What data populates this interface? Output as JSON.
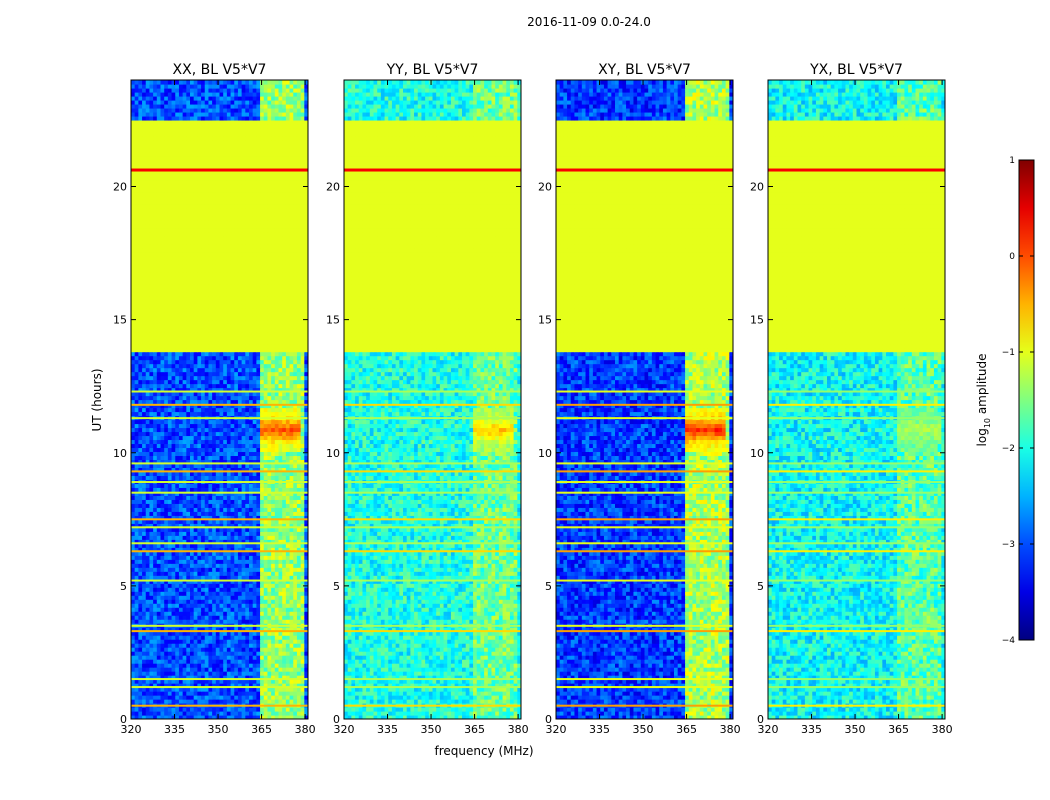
{
  "chart_data": {
    "type": "heatmap",
    "title": "2016-11-09 0.0-24.0",
    "xlabel": "frequency (MHz)",
    "ylabel": "UT (hours)",
    "xlim": [
      320,
      381
    ],
    "ylim": [
      0,
      24
    ],
    "xticks": [
      320,
      335,
      350,
      365,
      380
    ],
    "yticks": [
      0,
      5,
      10,
      15,
      20
    ],
    "colorbar": {
      "label_prefix": "log",
      "label_sub": "10",
      "label_suffix": " amplitude",
      "min": -4,
      "max": 1,
      "ticks": [
        1,
        0,
        -1,
        -2,
        -3,
        -4
      ],
      "colormap": "jet"
    },
    "panels": [
      {
        "title": "XX, BL V5*V7",
        "background_level": -3.0,
        "band_level": -1.4,
        "burst_peak": 0.0
      },
      {
        "title": "YY, BL V5*V7",
        "background_level": -2.0,
        "band_level": -1.6,
        "burst_peak": -0.6
      },
      {
        "title": "XY, BL V5*V7",
        "background_level": -3.1,
        "band_level": -1.3,
        "burst_peak": 0.2
      },
      {
        "title": "YX, BL V5*V7",
        "background_level": -2.1,
        "band_level": -1.7,
        "burst_peak": -1.3
      }
    ],
    "data_gap": {
      "ut_start": 13.7,
      "ut_end": 22.5,
      "level": -1.0,
      "bright_row_ut": 20.6
    },
    "burst": {
      "ut_start": 10.0,
      "ut_end": 11.6,
      "freq_start": 364,
      "freq_end": 378
    },
    "rfi_band_freq": [
      364,
      379
    ],
    "interference_rows_ut": [
      0.5,
      1.2,
      1.5,
      3.3,
      3.5,
      5.2,
      6.3,
      6.6,
      7.2,
      7.5,
      8.5,
      8.9,
      9.3,
      9.6,
      11.3,
      11.8,
      12.3
    ]
  }
}
